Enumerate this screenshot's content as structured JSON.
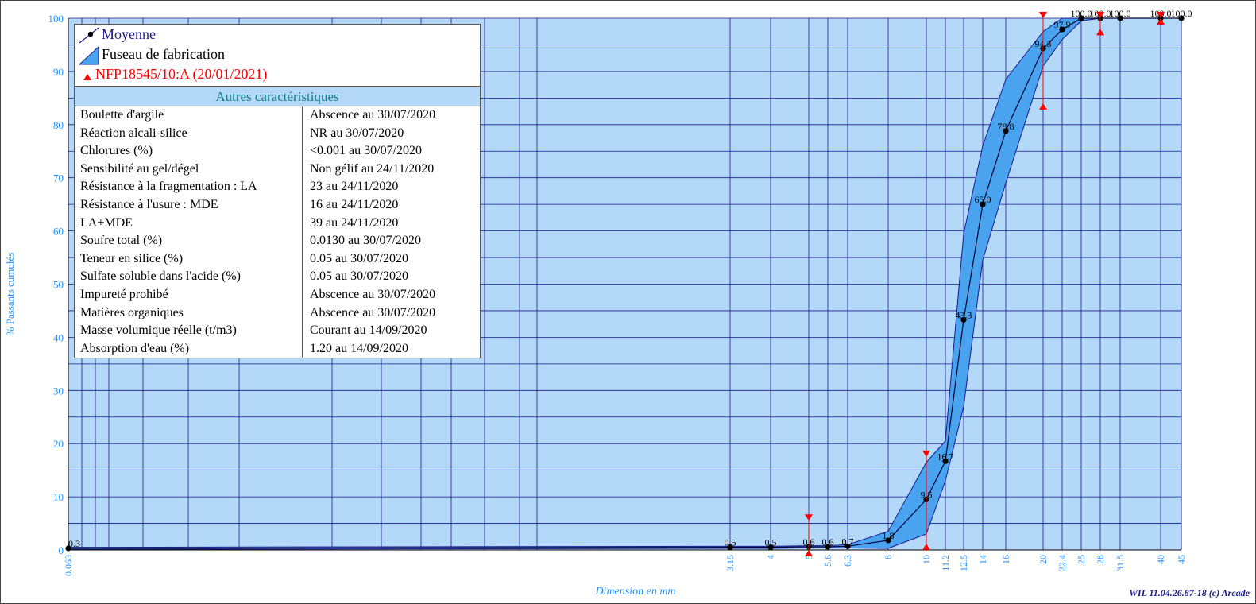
{
  "axes": {
    "ylabel": "% Passants cumulés",
    "xlabel": "Dimension en mm",
    "y_ticks": [
      "0",
      "10",
      "20",
      "30",
      "40",
      "50",
      "60",
      "70",
      "80",
      "90",
      "100"
    ],
    "x_ticks": [
      "0.063",
      "3.15",
      "4",
      "5",
      "5.6",
      "6.3",
      "8",
      "10",
      "11.2",
      "12.5",
      "14",
      "16",
      "20",
      "22.4",
      "25",
      "28",
      "31.5",
      "40",
      "45"
    ]
  },
  "footer": "WIL 11.04.26.87-18 (c) Arcade",
  "legend": {
    "mean": "Moyenne",
    "band": "Fuseau de fabrication",
    "norm": "NFP18545/10:A (20/01/2021)"
  },
  "characteristics": {
    "title": "Autres caractéristiques",
    "rows": [
      {
        "label": "Boulette d'argile",
        "value": "Abscence  au 30/07/2020"
      },
      {
        "label": "Réaction alcali-silice",
        "value": "NR  au 30/07/2020"
      },
      {
        "label": "Chlorures (%)",
        "value": "<0.001  au 30/07/2020"
      },
      {
        "label": "Sensibilité au gel/dégel",
        "value": "Non gélif  au 24/11/2020"
      },
      {
        "label": "Résistance à la fragmentation : LA",
        "value": "23  au 24/11/2020"
      },
      {
        "label": "Résistance à l'usure : MDE",
        "value": "16  au 24/11/2020"
      },
      {
        "label": "LA+MDE",
        "value": "39  au 24/11/2020"
      },
      {
        "label": "Soufre total (%)",
        "value": "0.0130  au 30/07/2020"
      },
      {
        "label": "Teneur en silice (%)",
        "value": "0.05  au 30/07/2020"
      },
      {
        "label": "Sulfate soluble dans l'acide (%)",
        "value": "0.05  au 30/07/2020"
      },
      {
        "label": "Impureté prohibé",
        "value": "Abscence  au 30/07/2020"
      },
      {
        "label": "Matières organiques",
        "value": "Abscence  au 30/07/2020"
      },
      {
        "label": "Masse volumique réelle (t/m3)",
        "value": "Courant  au 14/09/2020"
      },
      {
        "label": "Absorption d'eau (%)",
        "value": "1.20  au 14/09/2020"
      }
    ]
  },
  "colors": {
    "plot_bg": "#b4d8f7",
    "band_fill": "#4aa3ef",
    "grid": "#1a1a8c",
    "mean_line": "#000033",
    "norm_marker": "#ff0000",
    "tick_label": "#1e90ff"
  },
  "chart_data": {
    "type": "line",
    "x_scale": "granulometric (nonuniform sieve scale)",
    "ylim": [
      0,
      100
    ],
    "grid": true,
    "mean": {
      "name": "Moyenne",
      "x": [
        0.063,
        3.15,
        4,
        5,
        5.6,
        6.3,
        8,
        10,
        11.2,
        12.5,
        14,
        16,
        20,
        22.4,
        25,
        28,
        31.5,
        40,
        45
      ],
      "y": [
        0.3,
        0.5,
        0.5,
        0.6,
        0.6,
        0.7,
        1.8,
        9.5,
        16.7,
        43.3,
        65.0,
        78.8,
        94.3,
        97.9,
        100.0,
        100.0,
        100.0,
        100.0,
        100.0
      ],
      "labels": [
        "0.3",
        "0.5",
        "0.5",
        "0.6",
        "0.6",
        "0.7",
        "1.8",
        "9.5",
        "16.7",
        "43.3",
        "65.0",
        "78.8",
        "94.3",
        "97.9",
        "100.0",
        "100.0",
        "100.0",
        "100.0",
        "100.0"
      ]
    },
    "band": {
      "name": "Fuseau de fabrication",
      "x": [
        0.063,
        3.15,
        4,
        5,
        5.6,
        6.3,
        8,
        10,
        11.2,
        12.5,
        14,
        16,
        20,
        22.4,
        25,
        28,
        31.5,
        40,
        45
      ],
      "upper": [
        0.5,
        0.7,
        0.7,
        0.8,
        0.8,
        1.0,
        3.5,
        16.5,
        20.5,
        59.5,
        76,
        88.5,
        97.5,
        100,
        100,
        100,
        100,
        100,
        100
      ],
      "lower": [
        0.1,
        0.3,
        0.3,
        0.4,
        0.4,
        0.4,
        0.3,
        3.0,
        13.0,
        27.0,
        54.5,
        69.0,
        91.0,
        96.0,
        99.5,
        100,
        100,
        100,
        100
      ]
    },
    "norm": {
      "name": "NFP18545/10:A (20/01/2021)",
      "x": [
        5,
        10,
        20,
        28,
        40
      ],
      "upper": [
        5.5,
        17.5,
        100,
        100,
        100
      ],
      "lower": [
        0,
        1.2,
        84,
        98,
        100
      ]
    }
  }
}
